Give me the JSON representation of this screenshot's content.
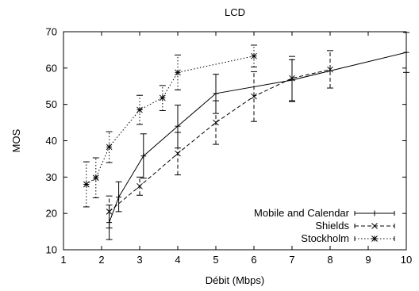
{
  "chart_data": {
    "type": "line",
    "title": "LCD",
    "xlabel": "Débit (Mbps)",
    "ylabel": "MOS",
    "xlim": [
      1,
      10
    ],
    "ylim": [
      10,
      70
    ],
    "xticks": [
      "1",
      "2",
      "3",
      "4",
      "5",
      "6",
      "7",
      "8",
      "9",
      "10"
    ],
    "yticks": [
      "10",
      "20",
      "30",
      "40",
      "50",
      "60",
      "70"
    ],
    "grid": false,
    "legend_position": "bottom-right",
    "series": [
      {
        "name": "Mobile and Calendar",
        "line_style": "solid",
        "marker": "plus",
        "points": [
          {
            "x": 2.2,
            "y": 17.5,
            "err_low": 12.8,
            "err_high": 22.3
          },
          {
            "x": 2.45,
            "y": 24.5,
            "err_low": 20.5,
            "err_high": 28.7
          },
          {
            "x": 3.1,
            "y": 35.8,
            "err_low": 29.7,
            "err_high": 41.9
          },
          {
            "x": 4.0,
            "y": 44.0,
            "err_low": 38.0,
            "err_high": 49.8
          },
          {
            "x": 5.0,
            "y": 53.0,
            "err_low": 47.5,
            "err_high": 58.3
          },
          {
            "x": 7.0,
            "y": 56.7,
            "err_low": 50.8,
            "err_high": 62.3
          },
          {
            "x": 10.0,
            "y": 64.3,
            "err_low": 58.8,
            "err_high": 69.8
          }
        ]
      },
      {
        "name": "Shields",
        "line_style": "dashed",
        "marker": "x",
        "points": [
          {
            "x": 2.2,
            "y": 20.5,
            "err_low": 16.0,
            "err_high": 24.8
          },
          {
            "x": 3.0,
            "y": 27.5,
            "err_low": 25.0,
            "err_high": 30.0
          },
          {
            "x": 4.0,
            "y": 36.5,
            "err_low": 30.6,
            "err_high": 42.3
          },
          {
            "x": 5.0,
            "y": 45.0,
            "err_low": 39.0,
            "err_high": 51.0
          },
          {
            "x": 6.0,
            "y": 52.2,
            "err_low": 45.3,
            "err_high": 59.0
          },
          {
            "x": 7.0,
            "y": 57.2,
            "err_low": 51.0,
            "err_high": 63.2
          },
          {
            "x": 8.0,
            "y": 59.6,
            "err_low": 54.5,
            "err_high": 64.8
          }
        ]
      },
      {
        "name": "Stockholm",
        "line_style": "dotted",
        "marker": "star",
        "points": [
          {
            "x": 1.6,
            "y": 28.0,
            "err_low": 21.8,
            "err_high": 34.2
          },
          {
            "x": 1.85,
            "y": 29.8,
            "err_low": 24.3,
            "err_high": 35.3
          },
          {
            "x": 2.2,
            "y": 38.3,
            "err_low": 34.0,
            "err_high": 42.5
          },
          {
            "x": 3.0,
            "y": 48.5,
            "err_low": 44.5,
            "err_high": 52.5
          },
          {
            "x": 3.6,
            "y": 51.8,
            "err_low": 48.3,
            "err_high": 55.2
          },
          {
            "x": 4.0,
            "y": 58.8,
            "err_low": 54.0,
            "err_high": 63.6
          },
          {
            "x": 6.0,
            "y": 63.3,
            "err_low": 60.3,
            "err_high": 66.3
          }
        ]
      }
    ]
  }
}
